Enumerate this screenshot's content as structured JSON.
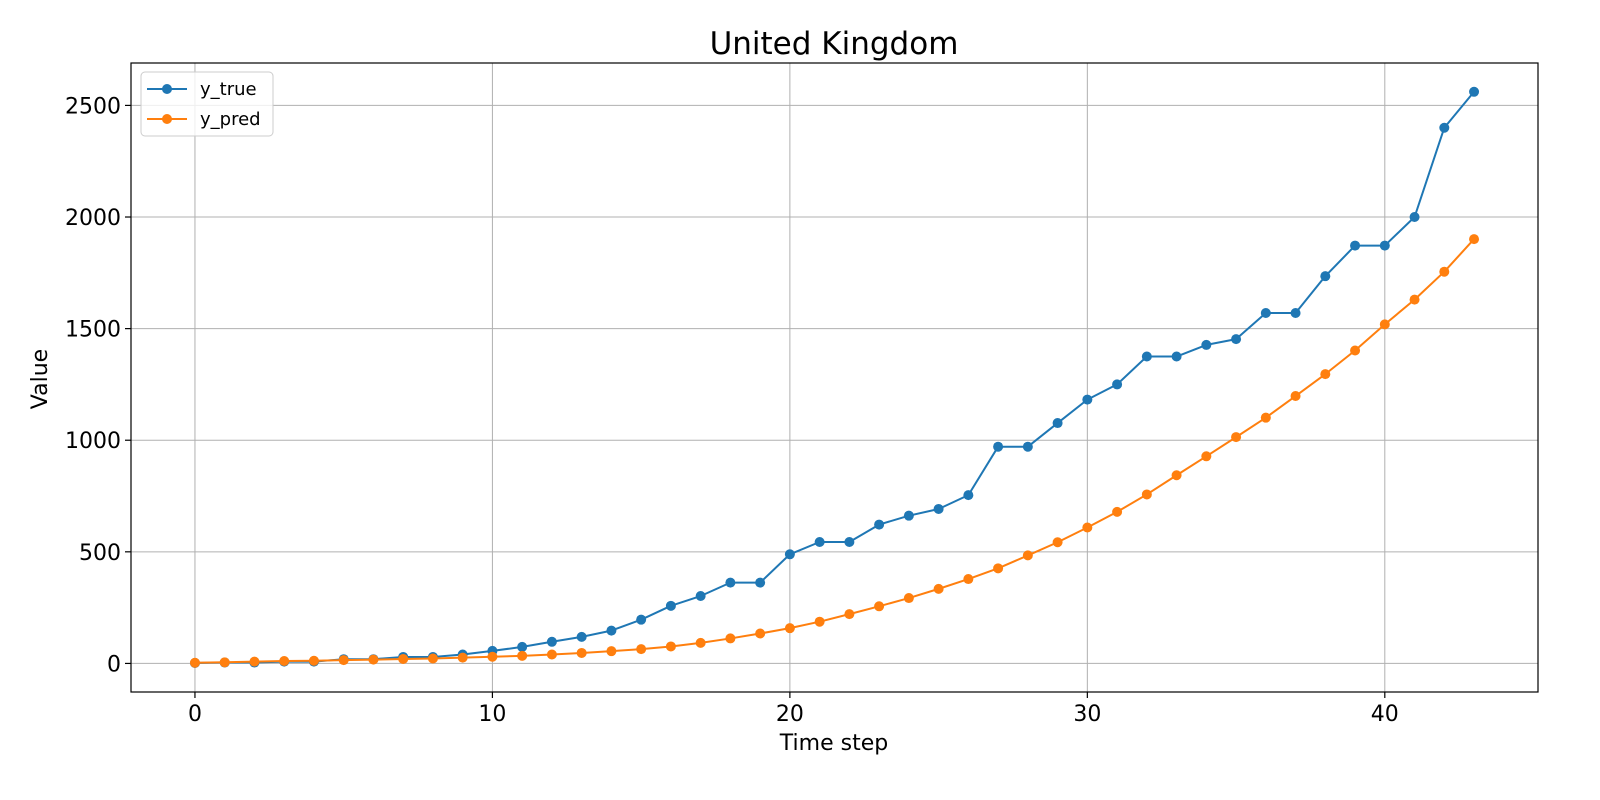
{
  "chart_data": {
    "type": "line",
    "title": "United Kingdom",
    "xlabel": "Time step",
    "ylabel": "Value",
    "xlim": [
      -2.15,
      45.15
    ],
    "ylim": [
      -128,
      2690
    ],
    "xticks": [
      0,
      10,
      20,
      30,
      40
    ],
    "yticks": [
      0,
      500,
      1000,
      1500,
      2000,
      2500
    ],
    "grid": true,
    "legend_position": "top-left",
    "x": [
      0,
      1,
      2,
      3,
      4,
      5,
      6,
      7,
      8,
      9,
      10,
      11,
      12,
      13,
      14,
      15,
      16,
      17,
      18,
      19,
      20,
      21,
      22,
      23,
      24,
      25,
      26,
      27,
      28,
      29,
      30,
      31,
      32,
      33,
      34,
      35,
      36,
      37,
      38,
      39,
      40,
      41,
      42,
      43
    ],
    "series": [
      {
        "name": "y_true",
        "color": "#1f77b4",
        "values": [
          2,
          4,
          4,
          8,
          8,
          19,
          19,
          29,
          29,
          40,
          56,
          74,
          97,
          119,
          147,
          196,
          258,
          302,
          362,
          362,
          489,
          544,
          544,
          622,
          662,
          692,
          754,
          971,
          971,
          1077,
          1182,
          1250,
          1375,
          1375,
          1427,
          1453,
          1570,
          1570,
          1735,
          1872,
          1872,
          2000,
          2400,
          2561
        ]
      },
      {
        "name": "y_pred",
        "color": "#ff7f0e",
        "values": [
          3,
          5,
          8,
          11,
          12,
          15,
          17,
          20,
          22,
          26,
          30,
          34,
          40,
          47,
          55,
          64,
          76,
          92,
          112,
          134,
          158,
          187,
          221,
          256,
          293,
          334,
          378,
          426,
          484,
          543,
          609,
          679,
          757,
          843,
          928,
          1014,
          1101,
          1198,
          1296,
          1402,
          1519,
          1630,
          1755,
          1901
        ]
      }
    ]
  }
}
